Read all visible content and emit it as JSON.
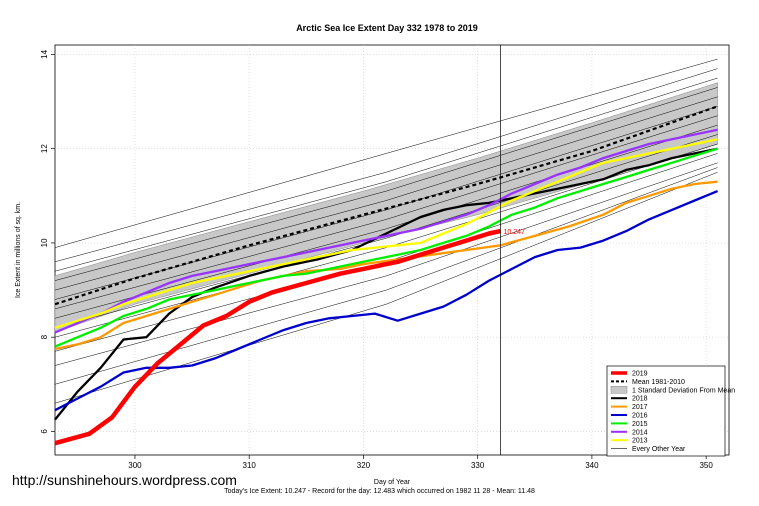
{
  "watermark": "http://sunshinehours.wordpress.com",
  "footer": "Today's Ice Extent: 10.247  - Record for the day: 12.483 which occurred on 1982 11 28  - Mean: 11.48",
  "chart_data": {
    "type": "line",
    "title": "Arctic Sea Ice Extent Day 332 1978 to 2019",
    "xlabel": "Day of Year",
    "ylabel": "Ice Extent in millions of sq. km.",
    "xlim": [
      293,
      352
    ],
    "ylim": [
      5.5,
      14.2
    ],
    "xticks": [
      300,
      310,
      320,
      330,
      340,
      350
    ],
    "yticks": [
      6,
      8,
      10,
      12,
      14
    ],
    "grid": true,
    "marker_day": 332,
    "today_label": "10.247",
    "legend_position": "bottom-right",
    "legend": [
      {
        "label": "2019",
        "color": "#ff0000",
        "style": "thick"
      },
      {
        "label": "Mean 1981-2010",
        "color": "#000000",
        "style": "dashed"
      },
      {
        "label": "1 Standard Deviation From Mean",
        "color": "#c8c8c8",
        "style": "box"
      },
      {
        "label": "2018",
        "color": "#000000",
        "style": "solid"
      },
      {
        "label": "2017",
        "color": "#ff9900",
        "style": "solid"
      },
      {
        "label": "2016",
        "color": "#0000cc",
        "style": "solid"
      },
      {
        "label": "2015",
        "color": "#00ee00",
        "style": "solid"
      },
      {
        "label": "2014",
        "color": "#9933ff",
        "style": "solid"
      },
      {
        "label": "2013",
        "color": "#ffff00",
        "style": "solid"
      },
      {
        "label": "Every Other Year",
        "color": "#000000",
        "style": "thin"
      }
    ],
    "mean": {
      "x": [
        293,
        300,
        310,
        320,
        330,
        340,
        351
      ],
      "y": [
        8.7,
        9.25,
        9.95,
        10.6,
        11.25,
        11.95,
        12.9
      ]
    },
    "std_band": {
      "x": [
        293,
        300,
        310,
        320,
        330,
        340,
        351
      ],
      "upper": [
        9.3,
        9.8,
        10.45,
        11.1,
        11.8,
        12.55,
        13.4
      ],
      "lower": [
        8.1,
        8.7,
        9.35,
        10.0,
        10.6,
        11.3,
        12.1
      ]
    },
    "series": [
      {
        "name": "2019",
        "color": "#ff0000",
        "x": [
          293,
          296,
          298,
          300,
          302,
          304,
          306,
          308,
          310,
          312,
          315,
          318,
          320,
          323,
          325,
          327,
          329,
          331,
          332
        ],
        "y": [
          5.75,
          5.95,
          6.3,
          6.95,
          7.45,
          7.85,
          8.25,
          8.45,
          8.75,
          8.95,
          9.15,
          9.35,
          9.45,
          9.6,
          9.75,
          9.9,
          10.05,
          10.2,
          10.25
        ]
      },
      {
        "name": "2018",
        "color": "#000000",
        "x": [
          293,
          295,
          297,
          299,
          301,
          303,
          305,
          307,
          310,
          313,
          316,
          319,
          322,
          325,
          327,
          329,
          331,
          333,
          335,
          337,
          339,
          341,
          343,
          345,
          347,
          349,
          351
        ],
        "y": [
          6.25,
          6.85,
          7.35,
          7.95,
          8.0,
          8.5,
          8.85,
          9.05,
          9.3,
          9.5,
          9.65,
          9.85,
          10.2,
          10.55,
          10.7,
          10.8,
          10.85,
          10.95,
          11.05,
          11.15,
          11.25,
          11.35,
          11.55,
          11.65,
          11.8,
          11.9,
          12.0
        ]
      },
      {
        "name": "2017",
        "color": "#ff9900",
        "x": [
          293,
          295,
          297,
          299,
          301,
          303,
          305,
          307,
          309,
          311,
          313,
          315,
          318,
          320,
          323,
          326,
          329,
          332,
          335,
          338,
          341,
          343,
          345,
          347,
          349,
          351
        ],
        "y": [
          7.75,
          7.85,
          8.0,
          8.3,
          8.45,
          8.6,
          8.75,
          8.9,
          9.05,
          9.2,
          9.3,
          9.4,
          9.45,
          9.55,
          9.65,
          9.75,
          9.85,
          9.95,
          10.15,
          10.35,
          10.6,
          10.85,
          11.0,
          11.15,
          11.25,
          11.3
        ]
      },
      {
        "name": "2016",
        "color": "#0000cc",
        "x": [
          293,
          295,
          297,
          299,
          301,
          303,
          305,
          307,
          309,
          311,
          313,
          315,
          317,
          319,
          321,
          323,
          325,
          327,
          329,
          331,
          333,
          335,
          337,
          339,
          341,
          343,
          345,
          347,
          349,
          351
        ],
        "y": [
          6.45,
          6.7,
          6.95,
          7.25,
          7.35,
          7.35,
          7.4,
          7.55,
          7.75,
          7.95,
          8.15,
          8.3,
          8.4,
          8.45,
          8.5,
          8.35,
          8.5,
          8.65,
          8.9,
          9.2,
          9.45,
          9.7,
          9.85,
          9.9,
          10.05,
          10.25,
          10.5,
          10.7,
          10.9,
          11.1
        ]
      },
      {
        "name": "2015",
        "color": "#00ee00",
        "x": [
          293,
          295,
          297,
          299,
          301,
          303,
          305,
          307,
          309,
          311,
          313,
          315,
          317,
          319,
          321,
          323,
          325,
          327,
          329,
          331,
          333,
          335,
          337,
          339,
          341,
          343,
          345,
          347,
          349,
          351
        ],
        "y": [
          7.8,
          8.0,
          8.2,
          8.45,
          8.6,
          8.8,
          8.9,
          9.0,
          9.1,
          9.2,
          9.3,
          9.35,
          9.45,
          9.55,
          9.65,
          9.75,
          9.85,
          10.0,
          10.15,
          10.35,
          10.6,
          10.75,
          10.95,
          11.1,
          11.25,
          11.4,
          11.55,
          11.7,
          11.85,
          12.0
        ]
      },
      {
        "name": "2014",
        "color": "#9933ff",
        "x": [
          293,
          295,
          297,
          299,
          301,
          303,
          305,
          307,
          309,
          311,
          313,
          315,
          317,
          319,
          321,
          323,
          325,
          327,
          329,
          331,
          333,
          335,
          337,
          339,
          341,
          343,
          345,
          347,
          349,
          351
        ],
        "y": [
          8.1,
          8.3,
          8.5,
          8.75,
          8.95,
          9.15,
          9.3,
          9.4,
          9.5,
          9.6,
          9.7,
          9.8,
          9.9,
          10.0,
          10.1,
          10.2,
          10.3,
          10.45,
          10.6,
          10.8,
          11.05,
          11.25,
          11.45,
          11.6,
          11.8,
          11.95,
          12.1,
          12.2,
          12.3,
          12.4
        ]
      },
      {
        "name": "2013",
        "color": "#ffff00",
        "x": [
          293,
          295,
          297,
          299,
          301,
          303,
          305,
          307,
          309,
          311,
          313,
          315,
          317,
          319,
          321,
          323,
          325,
          327,
          329,
          331,
          333,
          335,
          337,
          339,
          341,
          343,
          345,
          347,
          349,
          351
        ],
        "y": [
          8.2,
          8.35,
          8.5,
          8.7,
          8.85,
          9.0,
          9.15,
          9.25,
          9.35,
          9.45,
          9.55,
          9.65,
          9.75,
          9.85,
          9.9,
          9.95,
          10.0,
          10.2,
          10.4,
          10.65,
          10.9,
          11.1,
          11.3,
          11.5,
          11.7,
          11.8,
          11.9,
          12.0,
          12.1,
          12.2
        ]
      }
    ],
    "every_other_year": [
      {
        "x": [
          293,
          322,
          351
        ],
        "y": [
          9.9,
          11.9,
          13.9
        ]
      },
      {
        "x": [
          293,
          322,
          351
        ],
        "y": [
          9.6,
          11.5,
          13.7
        ]
      },
      {
        "x": [
          293,
          322,
          351
        ],
        "y": [
          9.4,
          11.3,
          13.5
        ]
      },
      {
        "x": [
          293,
          322,
          351
        ],
        "y": [
          9.2,
          11.1,
          13.3
        ]
      },
      {
        "x": [
          293,
          322,
          351
        ],
        "y": [
          9.0,
          10.9,
          13.1
        ]
      },
      {
        "x": [
          293,
          322,
          351
        ],
        "y": [
          8.8,
          10.7,
          12.9
        ]
      },
      {
        "x": [
          293,
          322,
          351
        ],
        "y": [
          8.6,
          10.5,
          12.7
        ]
      },
      {
        "x": [
          293,
          322,
          351
        ],
        "y": [
          8.4,
          10.3,
          12.5
        ]
      },
      {
        "x": [
          293,
          322,
          351
        ],
        "y": [
          8.2,
          10.1,
          12.3
        ]
      },
      {
        "x": [
          293,
          322,
          351
        ],
        "y": [
          8.0,
          9.9,
          12.1
        ]
      },
      {
        "x": [
          293,
          322,
          351
        ],
        "y": [
          7.7,
          9.6,
          11.9
        ]
      },
      {
        "x": [
          293,
          322,
          351
        ],
        "y": [
          7.4,
          9.3,
          11.7
        ]
      },
      {
        "x": [
          293,
          322,
          351
        ],
        "y": [
          7.0,
          9.0,
          11.6
        ]
      },
      {
        "x": [
          293,
          322,
          351
        ],
        "y": [
          6.6,
          8.7,
          11.5
        ]
      }
    ]
  }
}
